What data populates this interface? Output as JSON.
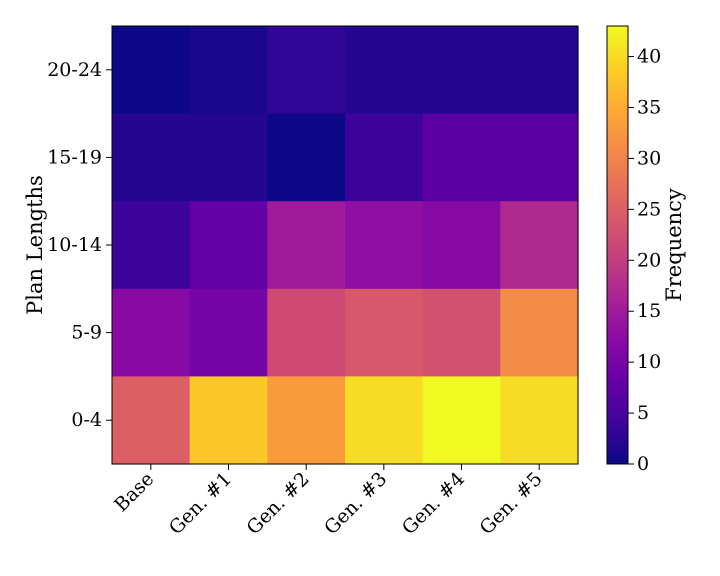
{
  "chart_data": {
    "type": "heatmap",
    "title": "",
    "xlabel": "",
    "ylabel": "Plan Lengths",
    "x_categories": [
      "Base",
      "Gen. #1",
      "Gen. #2",
      "Gen. #3",
      "Gen. #4",
      "Gen. #5"
    ],
    "y_categories": [
      "20-24",
      "15-19",
      "10-14",
      "5-9",
      "0-4"
    ],
    "values": [
      [
        0,
        1,
        3,
        2,
        2,
        2
      ],
      [
        2,
        2,
        0,
        4,
        7,
        7
      ],
      [
        4,
        8,
        15,
        13,
        12,
        17
      ],
      [
        12,
        10,
        22,
        24,
        23,
        31
      ],
      [
        25,
        38,
        33,
        40,
        43,
        40
      ]
    ],
    "colormap": "plasma",
    "colorbar": {
      "label": "Frequency",
      "min": 0,
      "max": 43,
      "ticks": [
        0,
        5,
        10,
        15,
        20,
        25,
        30,
        35,
        40
      ]
    },
    "x_tick_rotation": "45deg",
    "grid": false
  }
}
